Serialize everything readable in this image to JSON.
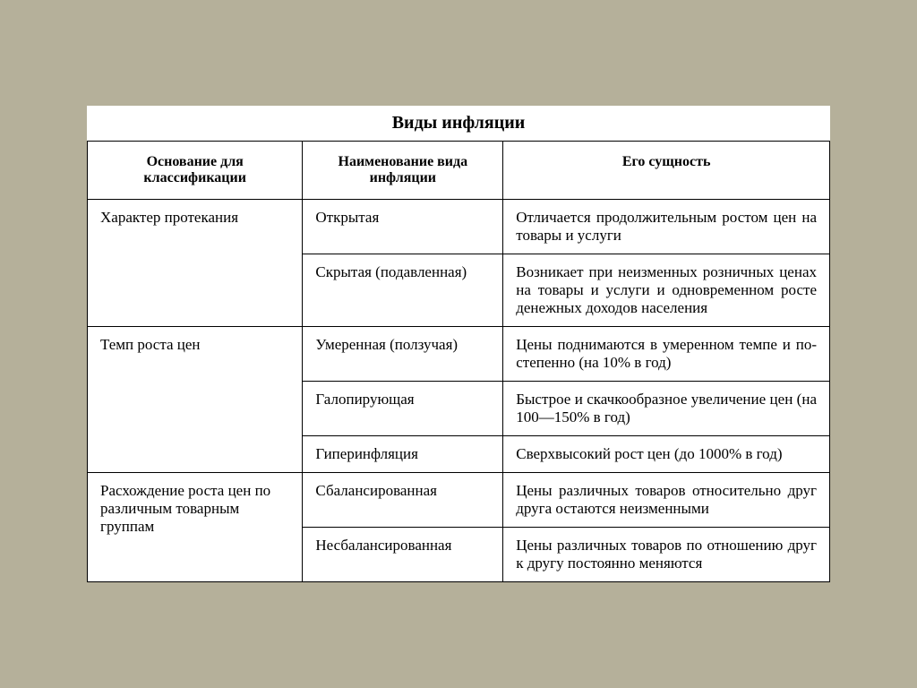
{
  "title": "Виды инфляции",
  "table": {
    "columns": [
      "Основание для классификации",
      "Наименование вида инфляции",
      "Его сущность"
    ],
    "groups": [
      {
        "basis": "Характер протекания",
        "rows": [
          {
            "name": "Открытая",
            "essence": "Отличается продолжи­тельным ростом цен на товары и услуги"
          },
          {
            "name": "Скрытая (подавленная)",
            "essence": "Возникает при неизмен­ных розничных ценах на товары и услуги и одно­временном росте денеж­ных доходов населения"
          }
        ]
      },
      {
        "basis": "Темп роста цен",
        "rows": [
          {
            "name": "Умеренная (ползучая)",
            "essence": "Цены поднимаются в умеренном темпе и по­степенно (на 10% в год)"
          },
          {
            "name": "Галопирующая",
            "essence": "Быстрое и скачкообраз­ное увеличение цен (на 100—150% в год)"
          },
          {
            "name": "Гиперинфляция",
            "essence": "Сверхвысокий рост цен (до 1000% в год)"
          }
        ]
      },
      {
        "basis": "Расхождение роста цен по различным товарным группам",
        "rows": [
          {
            "name": "Сбалансиро­ванная",
            "essence": "Цены различных това­ров относительно друг друга остаются неиз­менными"
          },
          {
            "name": "Несбаланси­рованная",
            "essence": "Цены различных това­ров по отношению друг к другу постоянно меня­ются"
          }
        ]
      }
    ]
  },
  "styling": {
    "background_color": "#b5b09a",
    "page_background": "#ffffff",
    "border_color": "#000000",
    "text_color": "#000000",
    "title_fontsize": 20,
    "header_fontsize": 16,
    "cell_fontsize": 17,
    "font_family": "Times New Roman",
    "col_widths": [
      "29%",
      "27%",
      "44%"
    ]
  }
}
